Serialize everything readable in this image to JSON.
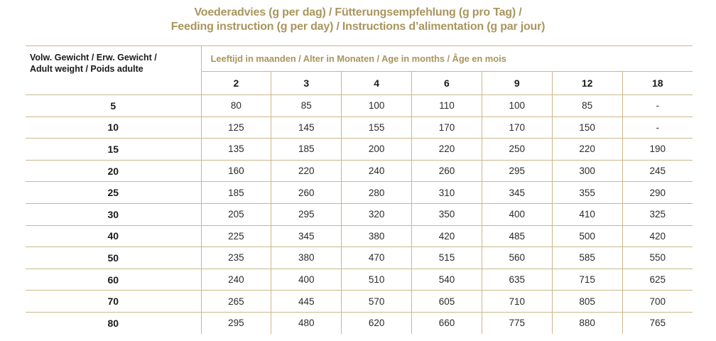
{
  "title": {
    "line1": "Voederadvies (g per dag) / Fütterungsempfehlung (g pro Tag) /",
    "line2": "Feeding instruction (g per day) / Instructions d’alimentation (g par jour)"
  },
  "table": {
    "row_header": {
      "line1": "Volw. Gewicht / Erw. Gewicht /",
      "line2": "Adult weight / Poids adulte"
    },
    "age_header": "Leeftijd in maanden / Alter in Monaten / Age in months / Âge en mois",
    "columns": [
      "2",
      "3",
      "4",
      "6",
      "9",
      "12",
      "18"
    ],
    "rows": [
      {
        "weight": "5",
        "values": [
          "80",
          "85",
          "100",
          "110",
          "100",
          "85",
          "-"
        ]
      },
      {
        "weight": "10",
        "values": [
          "125",
          "145",
          "155",
          "170",
          "170",
          "150",
          "-"
        ]
      },
      {
        "weight": "15",
        "values": [
          "135",
          "185",
          "200",
          "220",
          "250",
          "220",
          "190"
        ]
      },
      {
        "weight": "20",
        "values": [
          "160",
          "220",
          "240",
          "260",
          "295",
          "300",
          "245"
        ]
      },
      {
        "weight": "25",
        "values": [
          "185",
          "260",
          "280",
          "310",
          "345",
          "355",
          "290"
        ]
      },
      {
        "weight": "30",
        "values": [
          "205",
          "295",
          "320",
          "350",
          "400",
          "410",
          "325"
        ]
      },
      {
        "weight": "40",
        "values": [
          "225",
          "345",
          "380",
          "420",
          "485",
          "500",
          "420"
        ]
      },
      {
        "weight": "50",
        "values": [
          "235",
          "380",
          "470",
          "515",
          "560",
          "585",
          "550"
        ]
      },
      {
        "weight": "60",
        "values": [
          "240",
          "400",
          "510",
          "540",
          "635",
          "715",
          "625"
        ]
      },
      {
        "weight": "70",
        "values": [
          "265",
          "445",
          "570",
          "605",
          "710",
          "805",
          "700"
        ]
      },
      {
        "weight": "80",
        "values": [
          "295",
          "480",
          "620",
          "660",
          "775",
          "880",
          "765"
        ]
      }
    ]
  },
  "colors": {
    "gold": "#A9955E",
    "line": "#CBB88C",
    "heading_text": "#1B1B1B",
    "value_text": "#2B2B2B"
  }
}
